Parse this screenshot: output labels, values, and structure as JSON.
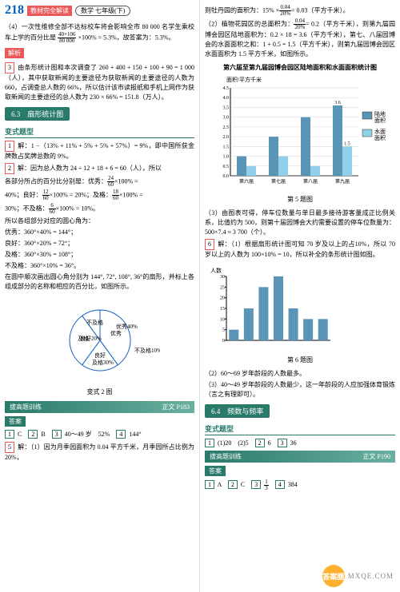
{
  "header": {
    "page": "218",
    "badge": "教材完全解读",
    "subject": "数学",
    "grade": "七年级(下)"
  },
  "left": {
    "p1a": "（4）一次性维修全部不达标校车将会影响全市 80 000 名学生乘校车上学的百分比是",
    "frac1": {
      "n": "40×106",
      "d": "80 000"
    },
    "p1b": "×100% = 5.3%，故答案为：5.3%。",
    "jiexi": "解析",
    "q3": "3",
    "p2": "由条形统计图和本次调查了 260 + 400 + 150 + 100 + 90 = 1 000（人），其中获取新闻的主要途径为获取新闻的主要途径的人数为 660，占调查总人数的 66%，所以估计该市读报纸和手机上网作为获取新闻的主要途径的总人数为 230 × 66% = 151.8（万人）。",
    "sec63": "6.3　扇形统计图",
    "bianshi": "变式题型",
    "q1": "1",
    "p3": "解：1 −（13% + 11% + 5% + 5% + 57%）= 9%，即中国所获金牌数占奖牌总数的 9%。",
    "q2": "2",
    "p4": "解：因为总人数为 24 ÷ 12 + 18 + 6 = 60（人），所以",
    "p4a": "各部分所占的百分比分别是：优秀：",
    "f_a": {
      "n": "24",
      "d": "60"
    },
    "p4a2": "×100% =",
    "p4a3": "40%；良好：",
    "f_b": {
      "n": "12",
      "d": "60"
    },
    "p4a4": "×100% = 20%；及格：",
    "f_c": {
      "n": "18",
      "d": "60"
    },
    "p4a5": "×100% =",
    "p4b": "30%；不及格：",
    "f_d": {
      "n": "6",
      "d": "60"
    },
    "p4b2": "×100% = 10%。",
    "p5": "所以各组部分对应的圆心角为：",
    "l1": "优秀：360°×40% = 144°；",
    "l2": "良好：360°×20% = 72°；",
    "l3": "及格：360°×30% = 108°；",
    "l4": "不及格：360°×10% = 36°。",
    "p6": "在圆中顺次画出圆心角分别为 144°, 72°, 108°, 36°的扇形，并标上各组成部分的名称和相应的百分比，如图所示。",
    "pie": {
      "labels": {
        "a": "优秀40%",
        "b": "良好20%",
        "c": "及格30%",
        "d": "不及格10%"
      },
      "colors": {
        "a": "#ffffff",
        "b": "#ffffff",
        "c": "#ffffff",
        "d": "#ffffff",
        "stroke": "#1060c0"
      },
      "angles": {
        "a": 144,
        "b": 72,
        "c": 108,
        "d": 36
      },
      "caption": "变式 2 图"
    },
    "bogao": "拔高题训练",
    "bogao_ref": "正文 P183",
    "daan": "答案",
    "ans": [
      {
        "n": "1",
        "v": "C"
      },
      {
        "n": "2",
        "v": "B"
      },
      {
        "n": "3",
        "v": "40～49 岁　52%"
      },
      {
        "n": "4",
        "v": "144°"
      }
    ],
    "q5": "5",
    "p7": "解：（1）因为月季园面积为 0.04 平方千米，月季园所占比例为 20%，"
  },
  "right": {
    "p1a": "则牡丹园的面积为：15% ×",
    "f_r1": {
      "n": "0.04",
      "d": "20%"
    },
    "p1b": "= 0.03（平方千米）。",
    "p2": "（2）植物花园区的总面积为：",
    "f_r2": {
      "n": "0.04",
      "d": "20%"
    },
    "p2b": "= 0.2（平方千米），则第九届园博会园区陆地面积为：0.2 × 18 = 3.6（平方千米），第七、八届园博会的水面面积之和：1 + 0.5 = 1.5（平方千米），则第九届园博会园区水面面积为 1.5 平方千米，如图所示。",
    "chart_title": "第六届至第九届园博会园区陆地面积和水面面积统计图",
    "chart": {
      "ylabel": "面积/平方千米",
      "ymax": 4.5,
      "ytick": 0.5,
      "categories": [
        "第六届",
        "第七届",
        "第八届",
        "第九届"
      ],
      "land_label": "陆地面积",
      "water_label": "水面面积",
      "land_vals": [
        1.0,
        2.0,
        3.0,
        3.6
      ],
      "water_vals": [
        0.5,
        1.0,
        0.5,
        1.5
      ],
      "land_color": "#5a95b8",
      "water_color": "#8fd0e8",
      "grid": "#bbb",
      "axis": "#000",
      "label_land": "3.6",
      "label_water": "1.5"
    },
    "chart_caption": "第 5 题图",
    "p3": "（3）由图表可得，停车位数量与单日最多接待游客量成正比例关系，比值约为 500，则第十届园博会大约需要设置的停车位数量为：500×7.4 ≈ 3 700（个）。",
    "q6": "6",
    "p4": "解：（1）根据扇形统计图可知 70 岁及以上的占10%，所以 70 岁以上的人数为 100×10% = 10，所以补全的条形统计图如图。",
    "bar": {
      "ylabel": "人数",
      "ymax": 30,
      "ytick": 5,
      "cats": [
        "",
        "",
        "",
        "",
        "",
        "",
        ""
      ],
      "vals": [
        5,
        15,
        25,
        30,
        15,
        10,
        10
      ],
      "color": "#5a95b8",
      "highlight_color": "#5a95b8",
      "axis": "#000",
      "caption": "第 6 题图"
    },
    "p5": "（2）60～69 岁年龄段的人数最多。",
    "p6": "（3）40～49 岁年龄段的人数最少，这一年龄段的人应加强体育锻炼（言之有理即可）。",
    "sec64": "6.4　频数与频率",
    "bianshi": "变式题型",
    "ans1": [
      {
        "n": "1",
        "v": "(1)20　(2)5"
      },
      {
        "n": "2",
        "v": "6"
      },
      {
        "n": "3",
        "v": "36"
      }
    ],
    "bogao": "拔高题训练",
    "bogao_ref": "正文 P190",
    "daan": "答案",
    "ans2": [
      {
        "n": "1",
        "v": "A"
      },
      {
        "n": "2",
        "v": "C"
      },
      {
        "n": "3",
        "v": ""
      },
      {
        "n": "4",
        "v": "384"
      }
    ],
    "ans2_frac": {
      "n": "1",
      "d": "3"
    }
  },
  "watermark": {
    "circle": "答案圈",
    "text": "MXQE.COM"
  }
}
